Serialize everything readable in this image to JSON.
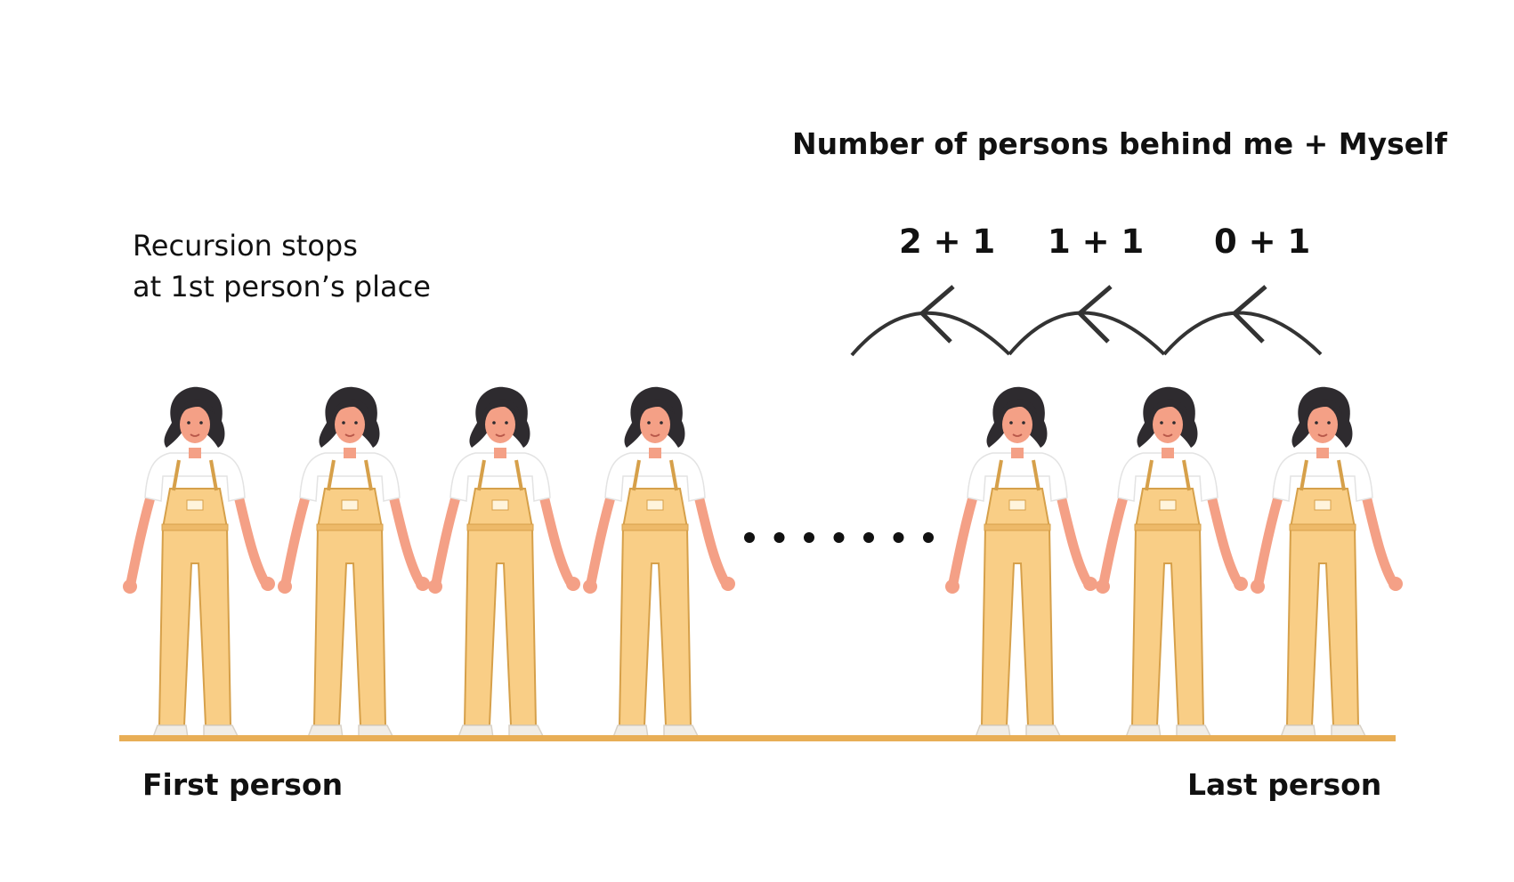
{
  "diagram": {
    "title": "Number of persons behind me + Myself",
    "stop_note": [
      "Recursion stops",
      "at 1st person’s place"
    ],
    "terms": [
      "2 + 1",
      "1 + 1",
      "0 + 1"
    ],
    "first_label": "First person",
    "last_label": "Last person",
    "ellipsis_dots": 7,
    "person_count_visible": 7,
    "colors": {
      "overalls": "#F9CE86",
      "overalls_stroke": "#D6A04A",
      "hair": "#2E2B2F",
      "skin": "#F4A086",
      "shirt": "#FFFFFF",
      "floor": "#E8AE56",
      "arrow": "#333333"
    }
  }
}
